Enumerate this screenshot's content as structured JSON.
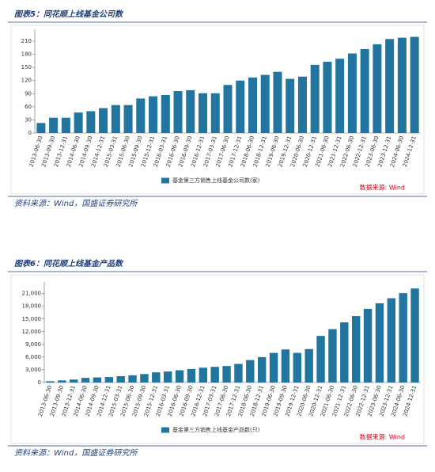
{
  "chart_data": [
    {
      "type": "bar",
      "title": "图表5：同花顺上线基金公司数",
      "categories": [
        "2013-06-30",
        "2013-09-30",
        "2013-12-31",
        "2014-06-30",
        "2014-09-30",
        "2014-12-31",
        "2015-03-31",
        "2015-06-30",
        "2015-09-30",
        "2015-12-31",
        "2016-03-31",
        "2016-06-30",
        "2016-09-30",
        "2016-12-31",
        "2017-03-31",
        "2017-06-30",
        "2017-12-31",
        "2018-06-30",
        "2018-12-31",
        "2019-06-30",
        "2019-12-31",
        "2020-06-30",
        "2020-12-31",
        "2021-06-30",
        "2021-12-31",
        "2022-06-30",
        "2022-12-31",
        "2023-06-30",
        "2023-12-31",
        "2024-06-30",
        "2024-12-31"
      ],
      "series": [
        {
          "name": "基金第三方销售上线基金公司数(家)",
          "color": "#21759e",
          "values": [
            23,
            35,
            35,
            47,
            50,
            57,
            64,
            64,
            79,
            84,
            87,
            96,
            98,
            91,
            91,
            110,
            120,
            127,
            133,
            140,
            124,
            129,
            156,
            163,
            170,
            182,
            192,
            203,
            215,
            218,
            220
          ]
        }
      ],
      "ylim": [
        0,
        230
      ],
      "yticks": [
        0,
        30,
        60,
        90,
        120,
        150,
        180,
        210
      ],
      "source_note": "数据来源: Wind",
      "footer": "资料来源：Wind，国盛证券研究所"
    },
    {
      "type": "bar",
      "title": "图表6：同花顺上线基金产品数",
      "categories": [
        "2013-06-30",
        "2013-09-30",
        "2013-12-31",
        "2014-06-30",
        "2014-09-30",
        "2014-12-31",
        "2015-03-31",
        "2015-06-30",
        "2015-09-30",
        "2015-12-31",
        "2016-03-31",
        "2016-06-30",
        "2016-09-30",
        "2016-12-31",
        "2017-03-31",
        "2017-06-30",
        "2017-12-31",
        "2018-06-30",
        "2018-12-31",
        "2019-06-30",
        "2019-09-30",
        "2019-12-31",
        "2020-06-30",
        "2020-12-31",
        "2021-06-30",
        "2021-12-31",
        "2022-06-30",
        "2022-12-31",
        "2023-06-30",
        "2023-12-31",
        "2024-06-30",
        "2024-12-31"
      ],
      "series": [
        {
          "name": "基金第三方销售上线基金产品数(只)",
          "color": "#21759e",
          "values": [
            300,
            500,
            700,
            1100,
            1200,
            1300,
            1500,
            1700,
            2000,
            2400,
            2600,
            2900,
            3200,
            3500,
            3700,
            3900,
            4400,
            5300,
            6000,
            7000,
            7800,
            7000,
            7900,
            11000,
            12600,
            14200,
            15700,
            17400,
            18700,
            19900,
            21100,
            22200
          ]
        }
      ],
      "ylim": [
        0,
        23000
      ],
      "yticks": [
        0,
        {
          "value": 3000,
          "label": "3,000"
        },
        {
          "value": 6000,
          "label": "6,000"
        },
        {
          "value": 9000,
          "label": "9,000"
        },
        {
          "value": 12000,
          "label": "12,000"
        },
        {
          "value": 15000,
          "label": "15,000"
        },
        {
          "value": 18000,
          "label": "18,000"
        },
        {
          "value": 21000,
          "label": "21,000"
        }
      ],
      "source_note": "数据来源: Wind",
      "footer": "资料来源：Wind，国盛证券研究所"
    }
  ]
}
